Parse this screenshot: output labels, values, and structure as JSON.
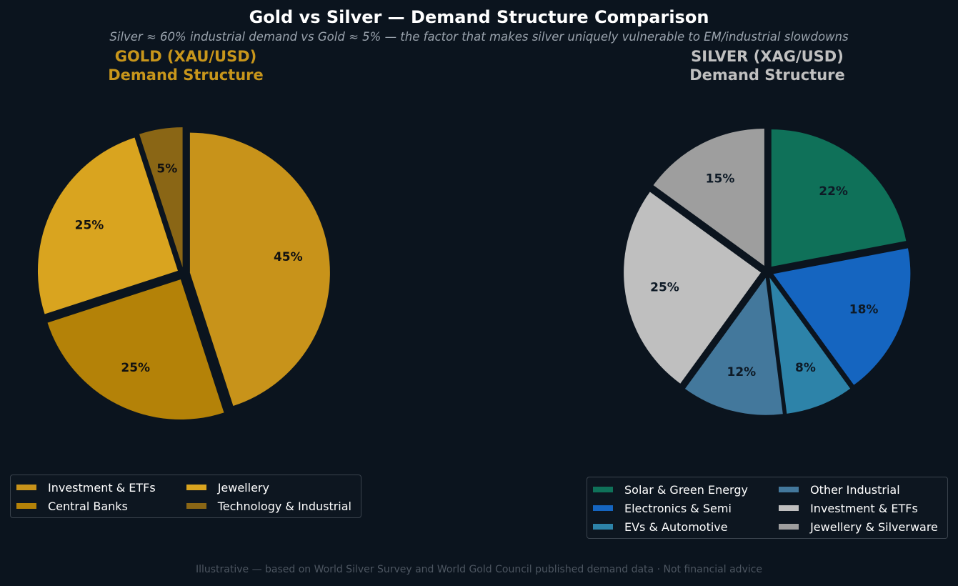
{
  "figure": {
    "title": "Gold vs Silver — Demand Structure Comparison",
    "subtitle": "Silver ≈ 60% industrial demand vs Gold ≈ 5% — the factor that makes silver uniquely vulnerable to EM/industrial slowdowns",
    "footnote": "Illustrative — based on World Silver Survey and World Gold Council published demand data · Not financial advice",
    "background": "#0b141e"
  },
  "chart_data": [
    {
      "type": "pie",
      "title_line1": "GOLD (XAU/USD)",
      "title_line2": "Demand Structure",
      "title_color": "#c8961b",
      "label_color": "#111111",
      "legend_position": "bottom-left",
      "slices": [
        {
          "label": "Investment & ETFs",
          "value": 45,
          "display": "45%",
          "color": "#c8931a"
        },
        {
          "label": "Central Banks",
          "value": 25,
          "display": "25%",
          "color": "#b48208"
        },
        {
          "label": "Jewellery",
          "value": 25,
          "display": "25%",
          "color": "#d9a41f"
        },
        {
          "label": "Technology & Industrial",
          "value": 5,
          "display": "5%",
          "color": "#8a6615"
        }
      ]
    },
    {
      "type": "pie",
      "title_line1": "SILVER (XAG/USD)",
      "title_line2": "Demand Structure",
      "title_color": "#c0c0c0",
      "label_color": "#0e1a26",
      "legend_position": "bottom-right",
      "slices": [
        {
          "label": "Solar & Green Energy",
          "value": 22,
          "display": "22%",
          "color": "#0f7159"
        },
        {
          "label": "Electronics & Semi",
          "value": 18,
          "display": "18%",
          "color": "#1565c0"
        },
        {
          "label": "EVs & Automotive",
          "value": 8,
          "display": "8%",
          "color": "#2d83a9"
        },
        {
          "label": "Other Industrial",
          "value": 12,
          "display": "12%",
          "color": "#43789c"
        },
        {
          "label": "Investment & ETFs",
          "value": 25,
          "display": "25%",
          "color": "#bfbfbf"
        },
        {
          "label": "Jewellery & Silverware",
          "value": 15,
          "display": "15%",
          "color": "#9e9e9e"
        }
      ]
    }
  ]
}
